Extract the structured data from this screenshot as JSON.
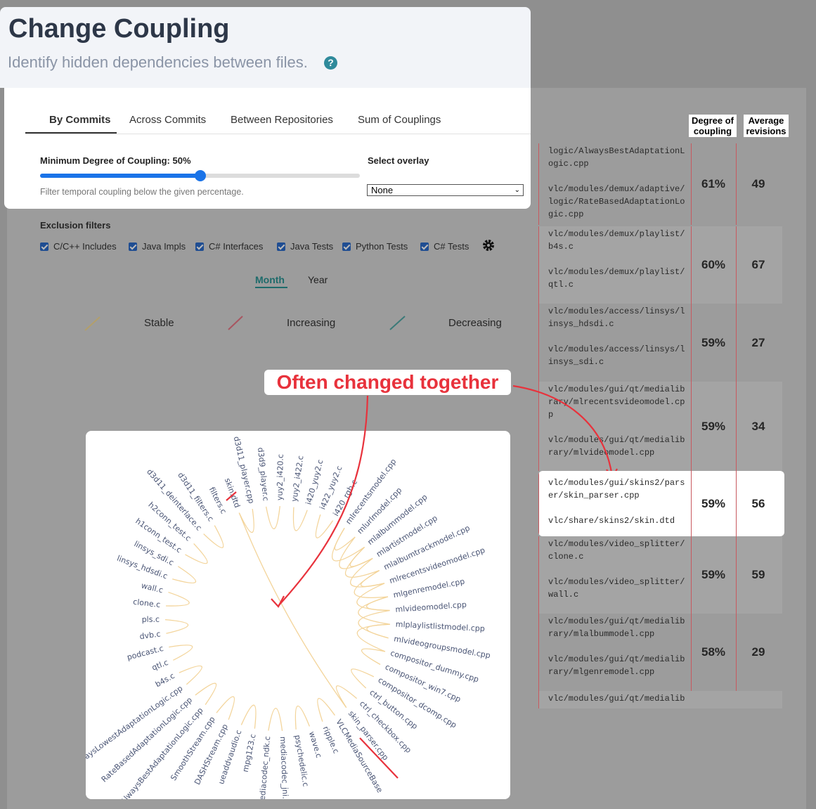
{
  "header": {
    "title": "Change Coupling",
    "subtitle": "Identify hidden dependencies between files.",
    "help_icon": "?"
  },
  "tabs": [
    "By Commits",
    "Across Commits",
    "Between Repositories",
    "Sum of Couplings"
  ],
  "slider": {
    "label": "Minimum Degree of Coupling: 50%",
    "hint": "Filter temporal coupling below the given percentage."
  },
  "overlay": {
    "label": "Select overlay",
    "value": "None"
  },
  "exclusion": {
    "title": "Exclusion filters",
    "items": [
      "C/C++ Includes",
      "Java Impls",
      "C# Interfaces",
      "Java Tests",
      "Python Tests",
      "C# Tests"
    ]
  },
  "period": [
    "Month",
    "Year"
  ],
  "legend": [
    "Stable",
    "Increasing",
    "Decreasing"
  ],
  "annotation": "Often changed together",
  "table": {
    "headers": [
      "Degree of coupling",
      "Average revisions"
    ],
    "rows": [
      [
        "logic/AlwaysBestAdaptationLogic.cpp",
        "vlc/modules/demux/adaptive/logic/RateBasedAdaptationLogic.cpp",
        "61%",
        "49"
      ],
      [
        "vlc/modules/demux/playlist/b4s.c",
        "vlc/modules/demux/playlist/qtl.c",
        "60%",
        "67"
      ],
      [
        "vlc/modules/access/linsys/linsys_hdsdi.c",
        "vlc/modules/access/linsys/linsys_sdi.c",
        "59%",
        "27"
      ],
      [
        "vlc/modules/gui/qt/medialibrary/mlrecentsvideomodel.cpp",
        "vlc/modules/gui/qt/medialibrary/mlvideomodel.cpp",
        "59%",
        "34"
      ],
      [
        "vlc/modules/gui/skins2/parser/skin_parser.cpp",
        "vlc/share/skins2/skin.dtd",
        "59%",
        "56"
      ],
      [
        "vlc/modules/video_splitter/clone.c",
        "vlc/modules/video_splitter/wall.c",
        "59%",
        "59"
      ],
      [
        "vlc/modules/gui/qt/medialibrary/mlalbummodel.cpp",
        "vlc/modules/gui/qt/medialibrary/mlgenremodel.cpp",
        "58%",
        "29"
      ],
      [
        "vlc/modules/gui/qt/medialib"
      ]
    ]
  },
  "chord": {
    "labels": [
      "skin.dtd",
      "d3d11_player.cpp",
      "d3d9_player.c",
      "yuy2_i420.c",
      "yuy2_i422.c",
      "i420_yuy2.c",
      "i422_yuy2.c",
      "i420_rgb.c",
      "mlrecentsmodel.cpp",
      "mlurlmodel.cpp",
      "mlalbummodel.cpp",
      "mlartistmodel.cpp",
      "mlalbumtrackmodel.cpp",
      "mlrecentsvideomodel.cpp",
      "mlgenremodel.cpp",
      "mlvideomodel.cpp",
      "mlplaylistlistmodel.cpp",
      "mlvideogroupsmodel.cpp",
      "compositor_dummy.cpp",
      "compositor_win7.cpp",
      "compositor_dcomp.cpp",
      "ctrl_button.cpp",
      "ctrl_checkbox.cpp",
      "skin_parser.cpp",
      "VLCMediaSourceBase",
      "ripple.c",
      "wave.c",
      "psychedelic.c",
      "mediacodec_jni.c",
      "mediacodec_ndk.c",
      "mpg123.c",
      "ueaddvaudio.c",
      "DASHStream.cpp",
      "SmoothStream.cpp",
      "AlwaysBestAdaptationLogic.cpp",
      "RateBasedAdaptationLogic.cpp",
      "AlwaysLowestAdaptationLogic.cpp",
      "b4s.c",
      "qtl.c",
      "podcast.c",
      "dvb.c",
      "pls.c",
      "clone.c",
      "wall.c",
      "linsys_hdsdi.c",
      "linsys_sdi.c",
      "h1conn_test.c",
      "h2conn_test.c",
      "d3d11_deinterlace.c",
      "d3d11_filters.c",
      "filters.c"
    ]
  }
}
